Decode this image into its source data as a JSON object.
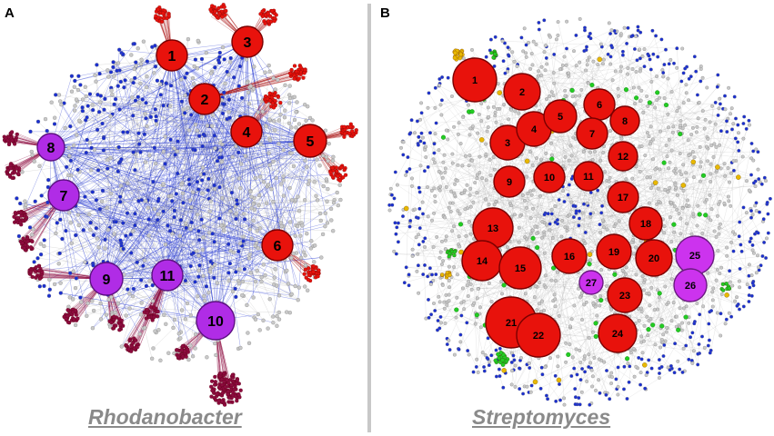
{
  "panels": [
    {
      "letter": "A",
      "caption": "Rhodanobacter",
      "hub_labels": [
        "1",
        "2",
        "3",
        "4",
        "5",
        "6",
        "7",
        "8",
        "9",
        "10",
        "11"
      ],
      "colors": {
        "hub_red": "#e8120c",
        "hub_purple": "#b02ce6",
        "blue": "#1a2fd0",
        "gray": "#c9c9c9",
        "maroon": "#8d0b3f"
      }
    },
    {
      "letter": "B",
      "caption": "Streptomyces",
      "hub_labels": [
        "1",
        "2",
        "3",
        "4",
        "5",
        "6",
        "7",
        "8",
        "9",
        "10",
        "11",
        "12",
        "13",
        "14",
        "15",
        "16",
        "17",
        "18",
        "19",
        "20",
        "21",
        "22",
        "23",
        "24",
        "25",
        "26",
        "27"
      ],
      "colors": {
        "hub_red": "#e8120c",
        "hub_purple": "#cc33ee",
        "blue": "#1a2fd0",
        "gray": "#c9c9c9",
        "green": "#22cc22",
        "yellow": "#e8b800"
      }
    }
  ]
}
